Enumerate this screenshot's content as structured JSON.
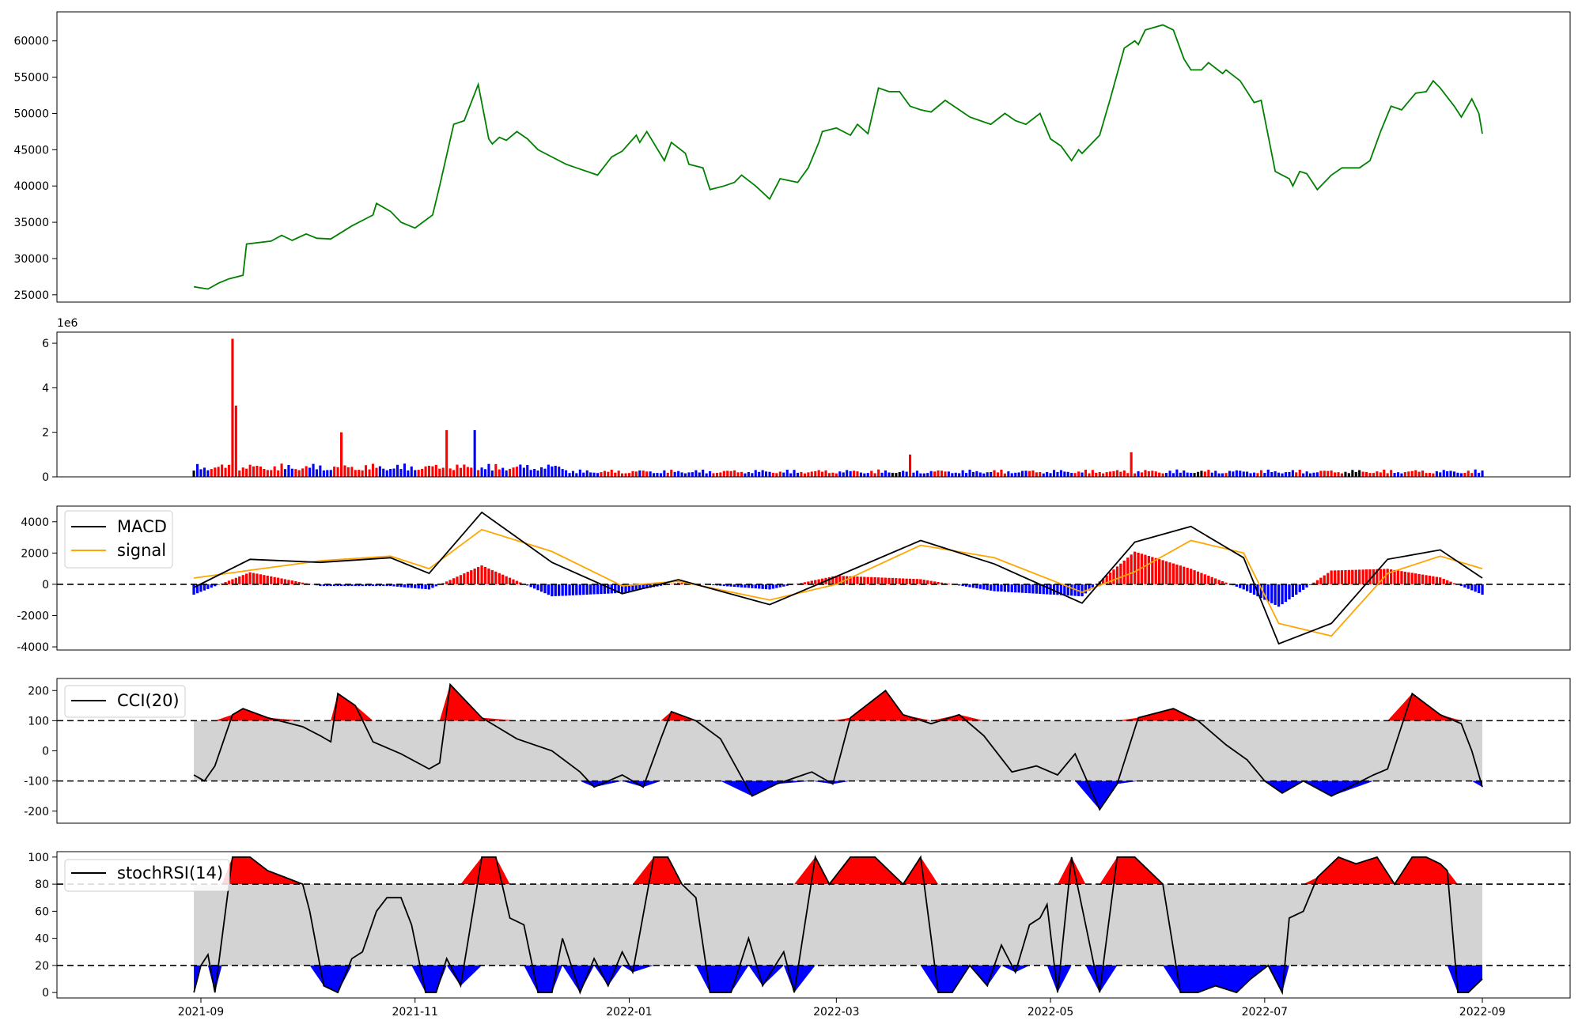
{
  "chart_data": [
    {
      "panel": "price",
      "type": "line",
      "line_color": "#008000",
      "ylim": [
        24000,
        64000
      ],
      "yticks": [
        "25000",
        "30000",
        "35000",
        "40000",
        "45000",
        "50000",
        "55000",
        "60000"
      ],
      "series": [
        {
          "x": [
            "2021-08-30",
            "2021-09-03",
            "2021-09-06",
            "2021-09-09",
            "2021-09-13",
            "2021-09-14",
            "2021-09-21",
            "2021-09-24",
            "2021-09-27",
            "2021-10-01",
            "2021-10-04",
            "2021-10-08",
            "2021-10-14",
            "2021-10-18",
            "2021-10-20",
            "2021-10-21",
            "2021-10-25",
            "2021-10-28",
            "2021-11-01",
            "2021-11-06",
            "2021-11-08",
            "2021-11-12",
            "2021-11-15",
            "2021-11-17",
            "2021-11-19",
            "2021-11-22",
            "2021-11-23",
            "2021-11-25",
            "2021-11-27",
            "2021-11-30",
            "2021-12-03",
            "2021-12-06",
            "2021-12-10",
            "2021-12-14",
            "2021-12-17",
            "2021-12-23",
            "2021-12-27",
            "2021-12-30",
            "2022-01-03",
            "2022-01-04",
            "2022-01-06",
            "2022-01-11",
            "2022-01-13",
            "2022-01-17",
            "2022-01-18",
            "2022-01-22",
            "2022-01-24",
            "2022-01-28",
            "2022-01-31",
            "2022-02-02",
            "2022-02-06",
            "2022-02-10",
            "2022-02-13",
            "2022-02-18",
            "2022-02-21",
            "2022-02-24",
            "2022-02-25",
            "2022-03-01",
            "2022-03-05",
            "2022-03-07",
            "2022-03-10",
            "2022-03-13",
            "2022-03-16",
            "2022-03-19",
            "2022-03-22",
            "2022-03-25",
            "2022-03-28",
            "2022-04-01",
            "2022-04-05",
            "2022-04-08",
            "2022-04-11",
            "2022-04-14",
            "2022-04-18",
            "2022-04-21",
            "2022-04-24",
            "2022-04-28",
            "2022-05-01",
            "2022-05-04",
            "2022-05-07",
            "2022-05-09",
            "2022-05-10",
            "2022-05-15",
            "2022-05-18",
            "2022-05-22",
            "2022-05-25",
            "2022-05-26",
            "2022-05-28",
            "2022-06-02",
            "2022-06-05",
            "2022-06-08",
            "2022-06-10",
            "2022-06-13",
            "2022-06-15",
            "2022-06-19",
            "2022-06-20",
            "2022-06-24",
            "2022-06-28",
            "2022-06-30",
            "2022-07-04",
            "2022-07-06",
            "2022-07-08",
            "2022-07-09",
            "2022-07-11",
            "2022-07-13",
            "2022-07-16",
            "2022-07-20",
            "2022-07-23",
            "2022-07-28",
            "2022-07-31",
            "2022-08-03",
            "2022-08-06",
            "2022-08-09",
            "2022-08-13",
            "2022-08-16",
            "2022-08-18",
            "2022-08-20",
            "2022-08-24",
            "2022-08-26",
            "2022-08-29",
            "2022-08-31",
            "2022-09-01"
          ],
          "y": [
            26100,
            25800,
            26600,
            27200,
            27700,
            32000,
            32400,
            33200,
            32500,
            33400,
            32800,
            32700,
            34500,
            35500,
            36000,
            37600,
            36500,
            35000,
            34200,
            36000,
            40000,
            48500,
            49000,
            51500,
            54000,
            46500,
            45800,
            46700,
            46300,
            47500,
            46500,
            45000,
            44000,
            43000,
            42500,
            41500,
            44000,
            44800,
            47000,
            46000,
            47500,
            43500,
            46000,
            44500,
            43000,
            42500,
            39500,
            40000,
            40500,
            41500,
            40000,
            38200,
            41000,
            40500,
            42500,
            46000,
            47500,
            48000,
            47000,
            48500,
            47200,
            53500,
            53000,
            53000,
            51000,
            50500,
            50200,
            51800,
            50500,
            49500,
            49000,
            48500,
            50000,
            49000,
            48500,
            50000,
            46500,
            45500,
            43500,
            45000,
            44500,
            47000,
            52000,
            59000,
            60000,
            59500,
            61500,
            62200,
            61500,
            57500,
            56000,
            56000,
            57000,
            55500,
            56000,
            54500,
            51500,
            51800,
            42000,
            41500,
            41000,
            40000,
            42000,
            41700,
            39500,
            41500,
            42500,
            42500,
            43500,
            47500,
            51000,
            50500,
            52800,
            53000,
            54500,
            53500,
            51000,
            49500,
            52000,
            50000,
            47200
          ]
        }
      ]
    },
    {
      "panel": "volume",
      "type": "bar",
      "scale_label": "1e6",
      "ylim": [
        0,
        6500000
      ],
      "yticks": [
        "0",
        "2",
        "4",
        "6"
      ],
      "colors": {
        "up": "#ff0000",
        "down": "#0000ff",
        "flat": "#000000"
      },
      "peaks": [
        {
          "x": "2021-09-10",
          "value": 6200000,
          "color": "red"
        },
        {
          "x": "2021-09-11",
          "value": 3200000,
          "color": "red"
        },
        {
          "x": "2021-10-11",
          "value": 2000000,
          "color": "red"
        },
        {
          "x": "2021-11-10",
          "value": 2100000,
          "color": "red"
        },
        {
          "x": "2021-11-18",
          "value": 2100000,
          "color": "blue"
        },
        {
          "x": "2022-03-22",
          "value": 1000000,
          "color": "red"
        },
        {
          "x": "2022-05-24",
          "value": 1100000,
          "color": "red"
        }
      ]
    },
    {
      "panel": "macd",
      "type": "line",
      "ylim": [
        -4200,
        5000
      ],
      "yticks": [
        "-4000",
        "-2000",
        "0",
        "2000",
        "4000"
      ],
      "legend": [
        "MACD",
        "signal"
      ],
      "legend_position": "upper left",
      "colors": {
        "macd": "#000000",
        "signal": "#ffa500",
        "hist_pos": "#ff0000",
        "hist_neg": "#0000ff"
      },
      "x": [
        "2021-08-30",
        "2021-09-15",
        "2021-10-05",
        "2021-10-25",
        "2021-11-05",
        "2021-11-20",
        "2021-12-10",
        "2021-12-30",
        "2022-01-15",
        "2022-02-10",
        "2022-03-01",
        "2022-03-25",
        "2022-04-15",
        "2022-05-10",
        "2022-05-25",
        "2022-06-10",
        "2022-06-25",
        "2022-07-05",
        "2022-07-20",
        "2022-08-05",
        "2022-08-20",
        "2022-09-01"
      ],
      "series": [
        {
          "name": "MACD",
          "values": [
            -200,
            1600,
            1400,
            1700,
            700,
            4600,
            1400,
            -600,
            300,
            -1300,
            500,
            2800,
            1300,
            -1200,
            2700,
            3700,
            1700,
            -3800,
            -2500,
            1600,
            2200,
            400
          ]
        },
        {
          "name": "signal",
          "values": [
            400,
            900,
            1500,
            1800,
            1000,
            3500,
            2100,
            -100,
            200,
            -1000,
            0,
            2500,
            1700,
            -500,
            800,
            2800,
            2000,
            -2500,
            -3300,
            700,
            1800,
            1000
          ]
        }
      ]
    },
    {
      "panel": "cci",
      "type": "area",
      "ylim": [
        -240,
        240
      ],
      "yticks": [
        "-200",
        "-100",
        "0",
        "100",
        "200"
      ],
      "thresholds": [
        -100,
        100
      ],
      "legend": [
        "CCI(20)"
      ],
      "legend_position": "upper left",
      "series": [
        {
          "name": "CCI(20)",
          "x": [
            "2021-08-30",
            "2021-09-02",
            "2021-09-05",
            "2021-09-10",
            "2021-09-13",
            "2021-09-20",
            "2021-09-30",
            "2021-10-05",
            "2021-10-08",
            "2021-10-10",
            "2021-10-15",
            "2021-10-20",
            "2021-10-28",
            "2021-11-05",
            "2021-11-08",
            "2021-11-11",
            "2021-11-20",
            "2021-11-30",
            "2021-12-10",
            "2021-12-18",
            "2021-12-22",
            "2021-12-30",
            "2022-01-05",
            "2022-01-10",
            "2022-01-13",
            "2022-01-20",
            "2022-01-27",
            "2022-02-05",
            "2022-02-12",
            "2022-02-22",
            "2022-02-28",
            "2022-03-05",
            "2022-03-15",
            "2022-03-20",
            "2022-03-28",
            "2022-04-05",
            "2022-04-12",
            "2022-04-20",
            "2022-04-27",
            "2022-05-03",
            "2022-05-08",
            "2022-05-15",
            "2022-05-20",
            "2022-05-26",
            "2022-06-05",
            "2022-06-12",
            "2022-06-20",
            "2022-06-26",
            "2022-07-01",
            "2022-07-06",
            "2022-07-12",
            "2022-07-20",
            "2022-08-01",
            "2022-08-05",
            "2022-08-12",
            "2022-08-20",
            "2022-08-26",
            "2022-08-29",
            "2022-09-01"
          ],
          "values": [
            -80,
            -100,
            -50,
            120,
            140,
            110,
            80,
            50,
            30,
            190,
            150,
            30,
            -10,
            -60,
            -40,
            220,
            110,
            40,
            0,
            -70,
            -120,
            -80,
            -120,
            40,
            130,
            100,
            40,
            -150,
            -110,
            -70,
            -110,
            110,
            200,
            120,
            90,
            120,
            50,
            -70,
            -50,
            -80,
            -10,
            -195,
            -110,
            110,
            140,
            100,
            20,
            -30,
            -100,
            -140,
            -100,
            -150,
            -80,
            -60,
            190,
            120,
            90,
            0,
            -120
          ]
        }
      ]
    },
    {
      "panel": "stochrsi",
      "type": "area",
      "ylim": [
        -4,
        104
      ],
      "yticks": [
        "0",
        "20",
        "40",
        "60",
        "80",
        "100"
      ],
      "thresholds": [
        20,
        80
      ],
      "legend": [
        "stochRSI(14)"
      ],
      "legend_position": "upper left",
      "series": [
        {
          "name": "stochRSI(14)",
          "x": [
            "2021-08-30",
            "2021-09-01",
            "2021-09-03",
            "2021-09-05",
            "2021-09-07",
            "2021-09-10",
            "2021-09-15",
            "2021-09-20",
            "2021-09-25",
            "2021-09-30",
            "2021-10-02",
            "2021-10-06",
            "2021-10-10",
            "2021-10-14",
            "2021-10-17",
            "2021-10-21",
            "2021-10-24",
            "2021-10-28",
            "2021-10-31",
            "2021-11-04",
            "2021-11-07",
            "2021-11-10",
            "2021-11-14",
            "2021-11-20",
            "2021-11-24",
            "2021-11-28",
            "2021-12-02",
            "2021-12-06",
            "2021-12-10",
            "2021-12-13",
            "2021-12-18",
            "2021-12-22",
            "2021-12-26",
            "2021-12-30",
            "2022-01-02",
            "2022-01-08",
            "2022-01-12",
            "2022-01-16",
            "2022-01-20",
            "2022-01-24",
            "2022-01-30",
            "2022-02-04",
            "2022-02-08",
            "2022-02-14",
            "2022-02-17",
            "2022-02-23",
            "2022-02-27",
            "2022-03-05",
            "2022-03-12",
            "2022-03-16",
            "2022-03-20",
            "2022-03-25",
            "2022-03-30",
            "2022-04-03",
            "2022-04-08",
            "2022-04-13",
            "2022-04-17",
            "2022-04-21",
            "2022-04-25",
            "2022-04-28",
            "2022-04-30",
            "2022-05-03",
            "2022-05-07",
            "2022-05-11",
            "2022-05-15",
            "2022-05-20",
            "2022-05-25",
            "2022-06-02",
            "2022-06-07",
            "2022-06-12",
            "2022-06-17",
            "2022-06-23",
            "2022-06-27",
            "2022-07-02",
            "2022-07-06",
            "2022-07-08",
            "2022-07-12",
            "2022-07-16",
            "2022-07-22",
            "2022-07-27",
            "2022-08-02",
            "2022-08-07",
            "2022-08-12",
            "2022-08-16",
            "2022-08-20",
            "2022-08-22",
            "2022-08-25",
            "2022-08-28",
            "2022-09-01"
          ],
          "values": [
            0,
            20,
            28,
            0,
            40,
            100,
            100,
            90,
            85,
            80,
            60,
            5,
            0,
            25,
            30,
            60,
            70,
            70,
            50,
            0,
            0,
            25,
            5,
            100,
            100,
            55,
            50,
            0,
            0,
            40,
            0,
            25,
            5,
            30,
            15,
            100,
            100,
            80,
            70,
            0,
            0,
            40,
            5,
            30,
            0,
            100,
            80,
            100,
            100,
            90,
            80,
            100,
            0,
            0,
            20,
            5,
            35,
            15,
            50,
            55,
            65,
            0,
            100,
            50,
            0,
            100,
            100,
            80,
            0,
            0,
            5,
            0,
            10,
            20,
            0,
            55,
            60,
            85,
            100,
            95,
            100,
            80,
            100,
            100,
            95,
            90,
            0,
            0,
            10
          ]
        }
      ]
    }
  ],
  "x_axis": {
    "tick_labels": [
      "2021-09",
      "2021-11",
      "2022-01",
      "2022-03",
      "2022-05",
      "2022-07",
      "2022-09"
    ]
  }
}
